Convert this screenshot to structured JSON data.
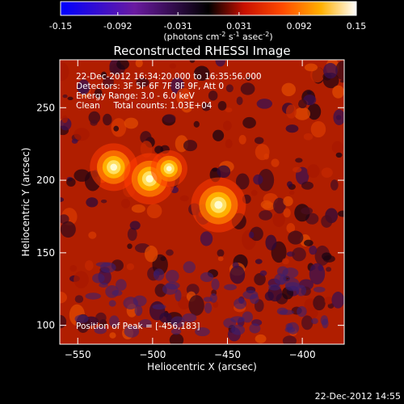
{
  "colorbar": {
    "tick_labels": [
      "-0.15",
      "-0.092",
      "-0.031",
      "0.031",
      "0.092",
      "0.15"
    ],
    "tick_values": [
      -0.15,
      -0.092,
      -0.031,
      0.031,
      0.092,
      0.15
    ],
    "range": [
      -0.15,
      0.15
    ],
    "units_label": "(photons cm",
    "units_sup1": "-2",
    "units_mid1": " s",
    "units_sup2": "-1",
    "units_mid2": " asec",
    "units_sup3": "-2",
    "units_end": ")"
  },
  "chart_data": {
    "type": "heatmap",
    "title": "Reconstructed RHESSI Image",
    "xlabel": "Heliocentric X (arcsec)",
    "ylabel": "Heliocentric Y (arcsec)",
    "xlim": [
      -562,
      -372
    ],
    "ylim": [
      87,
      283
    ],
    "x_ticks": [
      -550,
      -500,
      -450,
      -400
    ],
    "x_tick_labels": [
      "−550",
      "−500",
      "−450",
      "−400"
    ],
    "y_ticks": [
      100,
      150,
      200,
      250
    ],
    "y_tick_labels": [
      "100",
      "150",
      "200",
      "250"
    ],
    "colormap": "hot-cold",
    "sources": [
      {
        "x": -526,
        "y": 209,
        "intensity": 0.13
      },
      {
        "x": -502,
        "y": 201,
        "intensity": 0.14
      },
      {
        "x": -489,
        "y": 208,
        "intensity": 0.1
      },
      {
        "x": -456,
        "y": 183,
        "intensity": 0.15
      }
    ],
    "annotations": [
      "22-Dec-2012 16:34:20.000 to 16:35:56.000",
      "Detectors: 3F 5F 6F 7F 8F 9F, Att 0",
      "Energy Range: 3.0 - 6.0 keV",
      "Clean     Total counts: 1.03E+04"
    ],
    "peak_label": "Position of Peak = [-456,183]"
  },
  "footer": {
    "timestamp": "22-Dec-2012 14:55"
  }
}
